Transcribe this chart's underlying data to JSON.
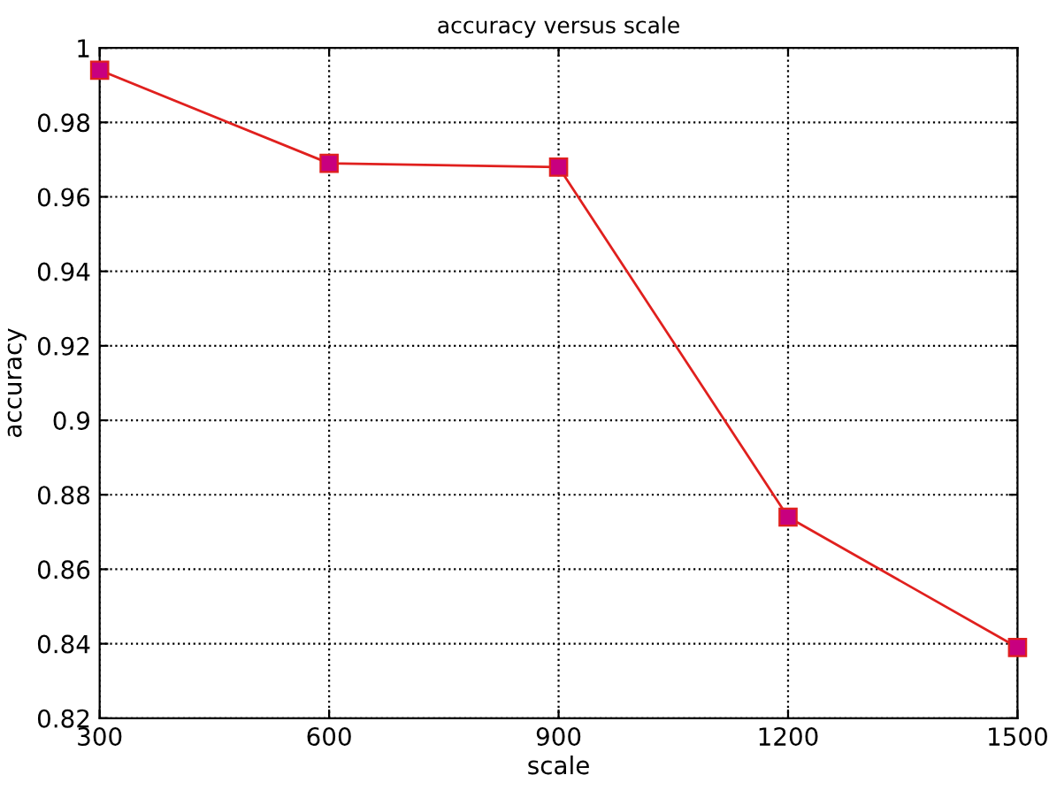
{
  "chart_data": {
    "type": "line",
    "title": "accuracy versus scale",
    "xlabel": "scale",
    "ylabel": "accuracy",
    "x": [
      300,
      600,
      900,
      1200,
      1500
    ],
    "series": [
      {
        "color": "#e0201e",
        "colors": [
          "#c8007f",
          "#c8007f",
          "#c8007f",
          "#c8007f",
          "#c8007f"
        ],
        "values": [
          0.994,
          0.969,
          0.968,
          0.874,
          0.839
        ]
      }
    ],
    "xlim": [
      300,
      1500
    ],
    "xticks": [
      300,
      600,
      900,
      1200,
      1500
    ],
    "ylim": [
      0.82,
      1
    ],
    "yticks": [
      0.82,
      0.84,
      0.86,
      0.88,
      0.9,
      0.92,
      0.94,
      0.96,
      0.98,
      1
    ],
    "grid": true,
    "marker": "square",
    "line_style": "solid"
  }
}
